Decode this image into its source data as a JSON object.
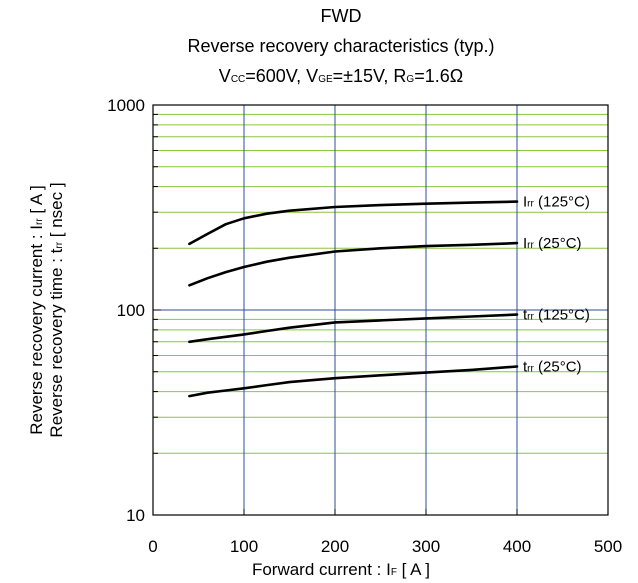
{
  "chart_data": {
    "type": "line",
    "title": "FWD",
    "subtitle": "Reverse recovery characteristics  (typ.)",
    "conditions": {
      "vcc_symbol": "V",
      "vcc_sub": "CC",
      "vcc_value": "=600V, ",
      "vge_symbol": "V",
      "vge_sub": "GE",
      "vge_value": "=±15V, ",
      "rg_symbol": "R",
      "rg_sub": "G",
      "rg_value": "=1.6Ω"
    },
    "xlabel": {
      "text": "Forward current : I",
      "sub": "F",
      "suffix": " [ A ]"
    },
    "ylabel": {
      "line1_text": "Reverse recovery current : I",
      "line1_sub": "rr",
      "line1_suffix": " [ A ]",
      "line2_text": "Reverse recovery time : t",
      "line2_sub": "rr",
      "line2_suffix": " [ nsec ]"
    },
    "xlim": [
      0,
      500
    ],
    "ylim": [
      10,
      1000
    ],
    "yscale": "log",
    "x_ticks": [
      0,
      100,
      200,
      300,
      400,
      500
    ],
    "x_tick_labels": [
      "0",
      "100",
      "200",
      "300",
      "400",
      "500"
    ],
    "y_ticks": [
      10,
      100,
      1000
    ],
    "y_tick_labels": [
      "10",
      "100",
      "1000"
    ],
    "grid": true,
    "colors": {
      "major_grid": "#2e4f8f",
      "minor_grid": "#8cc63f",
      "series": "#000000"
    },
    "series": [
      {
        "name": "Irr (125°C)",
        "label_main": "I",
        "label_sub": "rr",
        "label_rest": " (125°C)",
        "x": [
          40,
          60,
          80,
          100,
          125,
          150,
          200,
          250,
          300,
          350,
          400
        ],
        "y": [
          210,
          235,
          262,
          280,
          295,
          305,
          318,
          325,
          330,
          334,
          338
        ]
      },
      {
        "name": "Irr (25°C)",
        "label_main": "I",
        "label_sub": "rr",
        "label_rest": " (25°C)",
        "x": [
          40,
          60,
          80,
          100,
          125,
          150,
          200,
          250,
          300,
          350,
          400
        ],
        "y": [
          132,
          143,
          153,
          162,
          172,
          180,
          193,
          200,
          205,
          208,
          212
        ]
      },
      {
        "name": "trr (125°C)",
        "label_main": "t",
        "label_sub": "rr",
        "label_rest": " (125°C)",
        "x": [
          40,
          60,
          80,
          100,
          125,
          150,
          200,
          250,
          300,
          350,
          400
        ],
        "y": [
          70,
          72,
          74,
          76,
          79,
          82,
          87,
          89,
          91,
          93,
          95
        ]
      },
      {
        "name": "trr (25°C)",
        "label_main": "t",
        "label_sub": "rr",
        "label_rest": " (25°C)",
        "x": [
          40,
          60,
          80,
          100,
          125,
          150,
          200,
          250,
          300,
          350,
          400
        ],
        "y": [
          38,
          39.5,
          40.5,
          41.5,
          43,
          44.5,
          46.5,
          48,
          49.5,
          51,
          53
        ]
      }
    ]
  }
}
